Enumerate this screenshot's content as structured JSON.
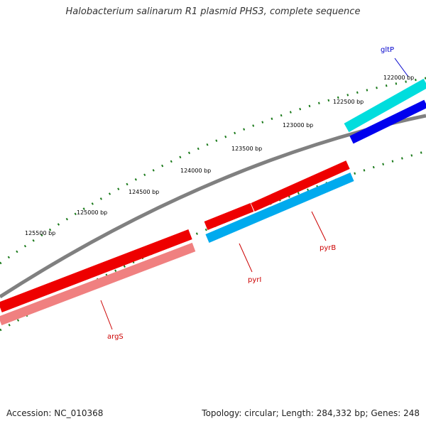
{
  "title": "Halobacterium salinarum R1 plasmid PHS3, complete sequence",
  "footer": {
    "accession": "Accession: NC_010368",
    "summary": "Topology: circular; Length: 284,332 bp; Genes: 248"
  },
  "colors": {
    "backbone": "#808080",
    "tick": "#1a7a1a",
    "label_red": "#cc0000",
    "label_blue": "#0000cc",
    "red_gene": "#ee0000",
    "pink_gene": "#f08080",
    "sky_gene": "#00aaee",
    "cyan_gene": "#00dddd",
    "blue_gene": "#0000ee"
  },
  "tick_labels": [
    {
      "text": "122000 bp",
      "bp": 122000
    },
    {
      "text": "122500 bp",
      "bp": 122500
    },
    {
      "text": "123000 bp",
      "bp": 123000
    },
    {
      "text": "123500 bp",
      "bp": 123500
    },
    {
      "text": "124000 bp",
      "bp": 124000
    },
    {
      "text": "124500 bp",
      "bp": 124500
    },
    {
      "text": "125000 bp",
      "bp": 125000
    },
    {
      "text": "125500 bp",
      "bp": 125500
    }
  ],
  "genes": [
    {
      "name": "gltP",
      "color": "blue_gene"
    },
    {
      "name": "pyrB",
      "color": "sky_gene"
    },
    {
      "name": "pyrI",
      "color": "red_gene"
    },
    {
      "name": "argS",
      "color": "pink_gene"
    }
  ]
}
